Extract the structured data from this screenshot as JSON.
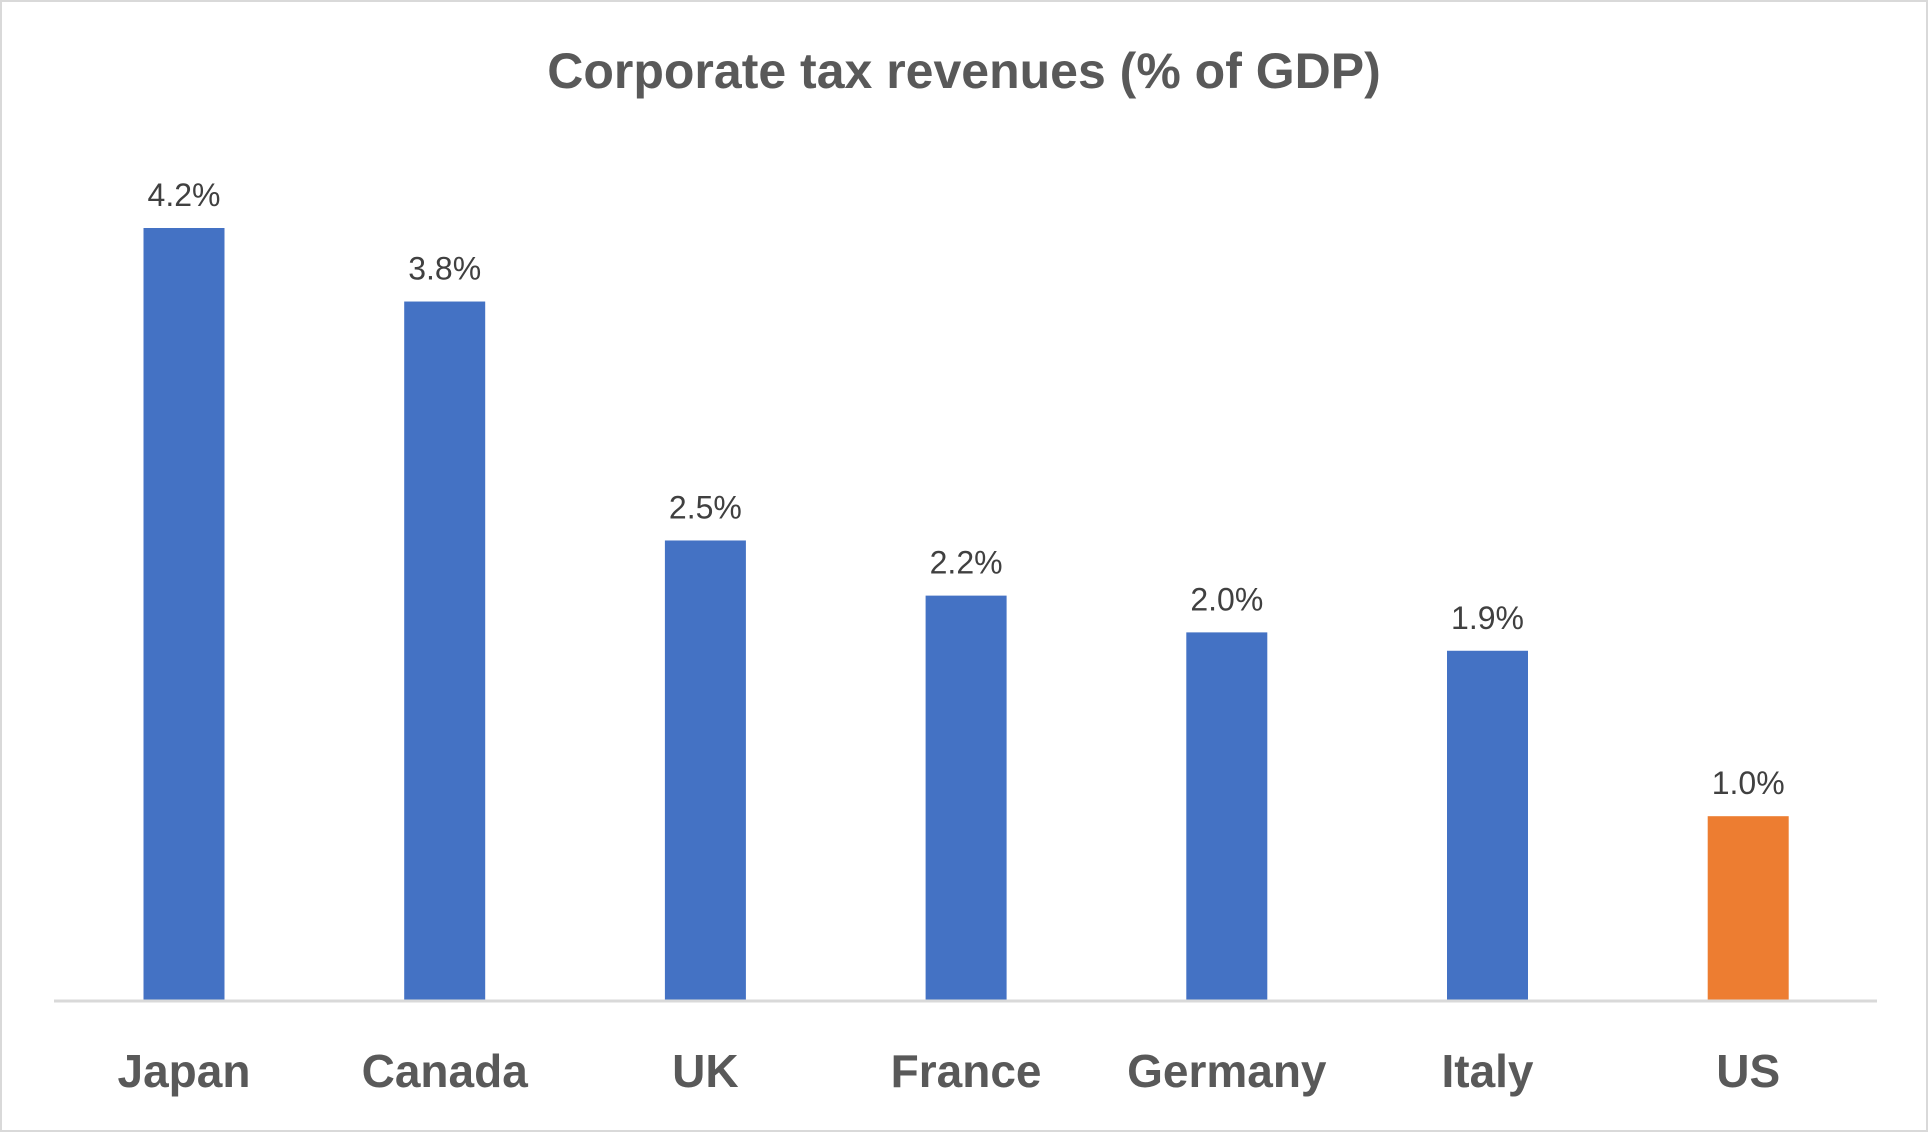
{
  "chart_data": {
    "type": "bar",
    "title": "Corporate tax revenues (% of GDP)",
    "categories": [
      "Japan",
      "Canada",
      "UK",
      "France",
      "Germany",
      "Italy",
      "US"
    ],
    "values": [
      4.2,
      3.8,
      2.5,
      2.2,
      2.0,
      1.9,
      1.0
    ],
    "data_labels": [
      "4.2%",
      "3.8%",
      "2.5%",
      "2.2%",
      "2.0%",
      "1.9%",
      "1.0%"
    ],
    "bar_colors": [
      "#4472C4",
      "#4472C4",
      "#4472C4",
      "#4472C4",
      "#4472C4",
      "#4472C4",
      "#ED7D31"
    ],
    "xlabel": "",
    "ylabel": "",
    "ylim": [
      0,
      4.2
    ],
    "grid": false,
    "legend": "none",
    "y_axis_visible": false
  }
}
